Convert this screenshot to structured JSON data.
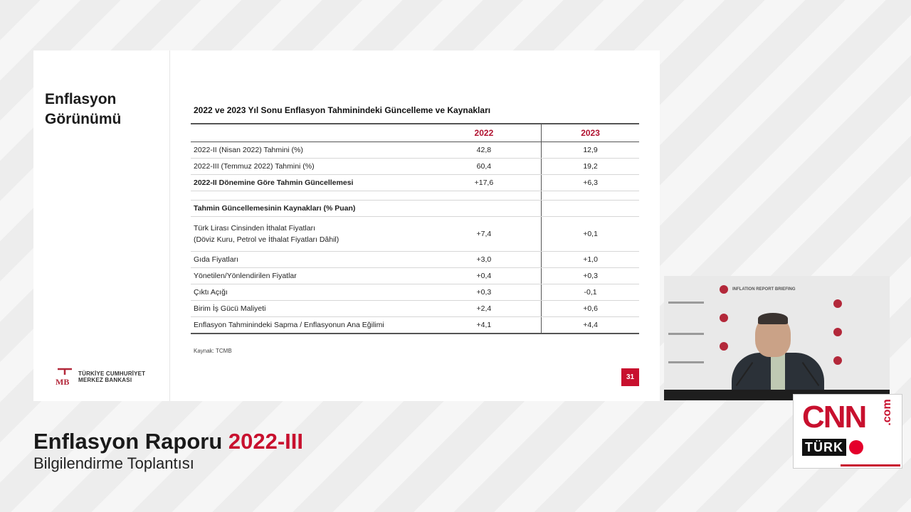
{
  "slide": {
    "heading_line1": "Enflasyon",
    "heading_line2": "Görünümü",
    "logo_line1": "TÜRKİYE CUMHURİYET",
    "logo_line2": "MERKEZ BANKASI",
    "table_title": "2022 ve 2023 Yıl Sonu Enflasyon Tahminindeki Güncelleme ve Kaynakları",
    "columns": [
      "",
      "2022",
      "2023"
    ],
    "rows": [
      {
        "label": "2022-II (Nisan 2022) Tahmini (%)",
        "v2022": "42,8",
        "v2023": "12,9"
      },
      {
        "label": "2022-III (Temmuz 2022) Tahmini (%)",
        "v2022": "60,4",
        "v2023": "19,2"
      },
      {
        "label": "2022-II Dönemine Göre Tahmin Güncellemesi",
        "v2022": "+17,6",
        "v2023": "+6,3"
      },
      {
        "label": "Tahmin Güncellemesinin Kaynakları (% Puan)",
        "v2022": "",
        "v2023": ""
      },
      {
        "label": "Türk Lirası Cinsinden İthalat Fiyatları",
        "label2": "(Döviz Kuru, Petrol ve İthalat Fiyatları Dâhil)",
        "v2022": "+7,4",
        "v2023": "+0,1"
      },
      {
        "label": "Gıda Fiyatları",
        "v2022": "+3,0",
        "v2023": "+1,0"
      },
      {
        "label": "Yönetilen/Yönlendirilen Fiyatlar",
        "v2022": "+0,4",
        "v2023": "+0,3"
      },
      {
        "label": "Çıktı Açığı",
        "v2022": "+0,3",
        "v2023": "-0,1"
      },
      {
        "label": "Birim İş Gücü Maliyeti",
        "v2022": "+2,4",
        "v2023": "+0,6"
      },
      {
        "label": "Enflasyon Tahminindeki Sapma / Enflasyonun Ana Eğilimi",
        "v2022": "+4,1",
        "v2023": "+4,4"
      }
    ],
    "source": "Kaynak: TCMB",
    "page_number": "31"
  },
  "caption": {
    "title_main": "Enflasyon Raporu",
    "title_accent": "2022-III",
    "subtitle": "Bilgilendirme Toplantısı"
  },
  "video": {
    "backdrop_text": "INFLATION REPORT BRIEFING"
  },
  "broadcaster": {
    "cnn": "CNN",
    "com": ".com",
    "turk": "TÜRK"
  },
  "colors": {
    "accent": "#c8102e",
    "header_year": "#b0112f"
  }
}
